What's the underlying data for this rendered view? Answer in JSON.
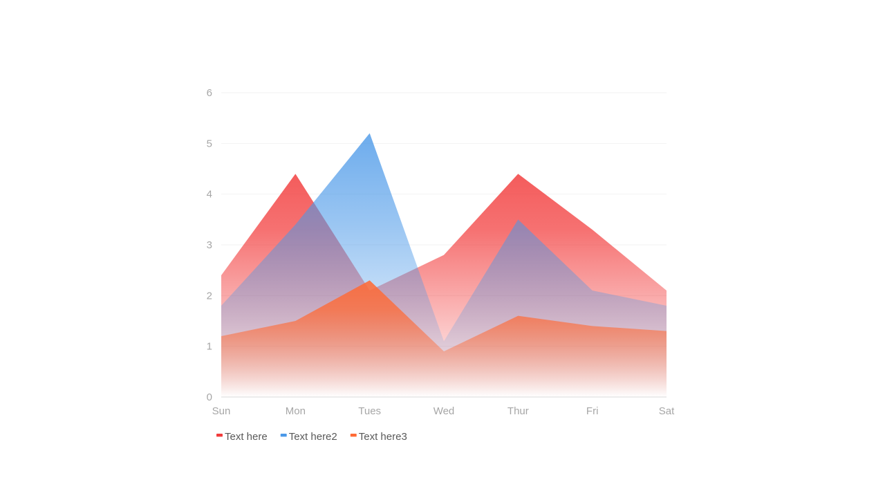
{
  "chart_data": {
    "type": "area",
    "categories": [
      "Sun",
      "Mon",
      "Tues",
      "Wed",
      "Thur",
      "Fri",
      "Sat"
    ],
    "series": [
      {
        "name": "Text here",
        "values": [
          2.4,
          4.4,
          2.1,
          2.8,
          4.4,
          3.3,
          2.1
        ],
        "color": "#f23b3b"
      },
      {
        "name": "Text here2",
        "values": [
          1.8,
          3.4,
          5.2,
          1.1,
          3.5,
          2.1,
          1.8
        ],
        "color": "#4a98e8"
      },
      {
        "name": "Text here3",
        "values": [
          1.2,
          1.5,
          2.3,
          0.9,
          1.6,
          1.4,
          1.3
        ],
        "color": "#ff6a35"
      }
    ],
    "yticks": [
      0,
      1,
      2,
      3,
      4,
      5,
      6
    ],
    "ylim": [
      0,
      6
    ],
    "grid": true,
    "legend_position": "bottom-left",
    "title": "",
    "xlabel": "",
    "ylabel": ""
  }
}
